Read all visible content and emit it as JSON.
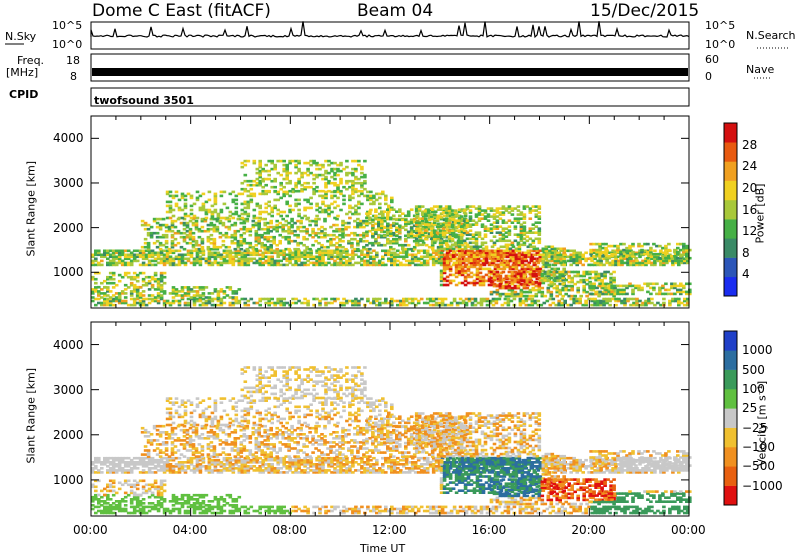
{
  "header": {
    "station": "Dome C East (fitACF)",
    "beam": "Beam 04",
    "date": "15/Dec/2015"
  },
  "strips": {
    "nsky_label": "N.Sky",
    "nsky_tick_hi": "10^5",
    "nsky_tick_lo": "10^0",
    "nsearch_label": "N.Search",
    "nsearch_tick_hi": "10^5",
    "nsearch_tick_lo": "10^0",
    "freq_label": "Freq.",
    "freq_unit": "[MHz]",
    "freq_tick_hi": "18",
    "freq_tick_lo": "8",
    "nave_label": "Nave",
    "nave_tick_hi": "60",
    "nave_tick_lo": "0",
    "cpid_label": "CPID",
    "cpid_value": "twofsound 3501"
  },
  "chart_data": [
    {
      "type": "heatmap",
      "name": "power",
      "ylabel": "Slant Range [km]",
      "xlabel": "",
      "xlim_hours": [
        0,
        24
      ],
      "ylim": [
        200,
        4500
      ],
      "yticks": [
        "1000",
        "2000",
        "3000",
        "4000"
      ],
      "colorbar_label": "Power [dB]",
      "colorbar_ticks": [
        "4",
        "8",
        "12",
        "16",
        "20",
        "24",
        "28"
      ],
      "colors": [
        "#1a2df0",
        "#2c56b8",
        "#3a8a66",
        "#46b046",
        "#a8c83a",
        "#f0d020",
        "#f0a020",
        "#e85a10",
        "#d41010"
      ]
    },
    {
      "type": "heatmap",
      "name": "velocity",
      "ylabel": "Slant Range [km]",
      "xlabel": "Time UT",
      "xlim_hours": [
        0,
        24
      ],
      "ylim": [
        200,
        4500
      ],
      "yticks": [
        "1000",
        "2000",
        "3000",
        "4000"
      ],
      "xticks": [
        "00:00",
        "04:00",
        "08:00",
        "12:00",
        "16:00",
        "20:00",
        "00:00"
      ],
      "colorbar_label": "Velocity [m s⁻¹]",
      "colorbar_ticks": [
        "1000",
        "500",
        "100",
        "25",
        "−25",
        "−100",
        "−500",
        "−1000"
      ],
      "colors": [
        "#2040c8",
        "#2c6ea0",
        "#3a9a5a",
        "#60c040",
        "#c8c8c8",
        "#f0c030",
        "#f09020",
        "#e86010",
        "#e01010"
      ]
    }
  ]
}
